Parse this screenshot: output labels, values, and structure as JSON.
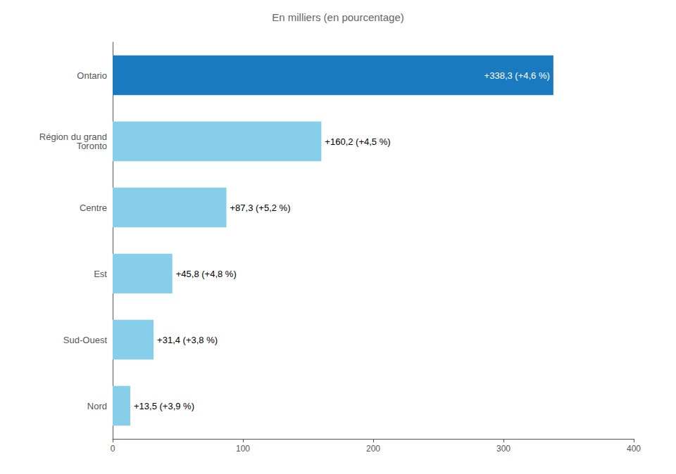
{
  "chart_data": {
    "type": "bar",
    "orientation": "horizontal",
    "title": "En milliers (en pourcentage)",
    "categories": [
      "Ontario",
      "Région du grand\nToronto",
      "Centre",
      "Est",
      "Sud-Ouest",
      "Nord"
    ],
    "values": [
      338.3,
      160.2,
      87.3,
      45.8,
      31.4,
      13.5
    ],
    "value_labels": [
      "+338,3 (+4,6 %)",
      "+160,2 (+4,5 %)",
      "+87,3 (+5,2 %)",
      "+45,8 (+4,8 %)",
      "+31,4 (+3,8 %)",
      "+13,5 (+3,9 %)"
    ],
    "colors": [
      "#1a7abf",
      "#87ceeb",
      "#87ceeb",
      "#87ceeb",
      "#87ceeb",
      "#87ceeb"
    ],
    "data_labels": true,
    "xlim": [
      0,
      400
    ],
    "xticks": [
      0,
      100,
      200,
      300,
      400
    ],
    "grid": false
  }
}
